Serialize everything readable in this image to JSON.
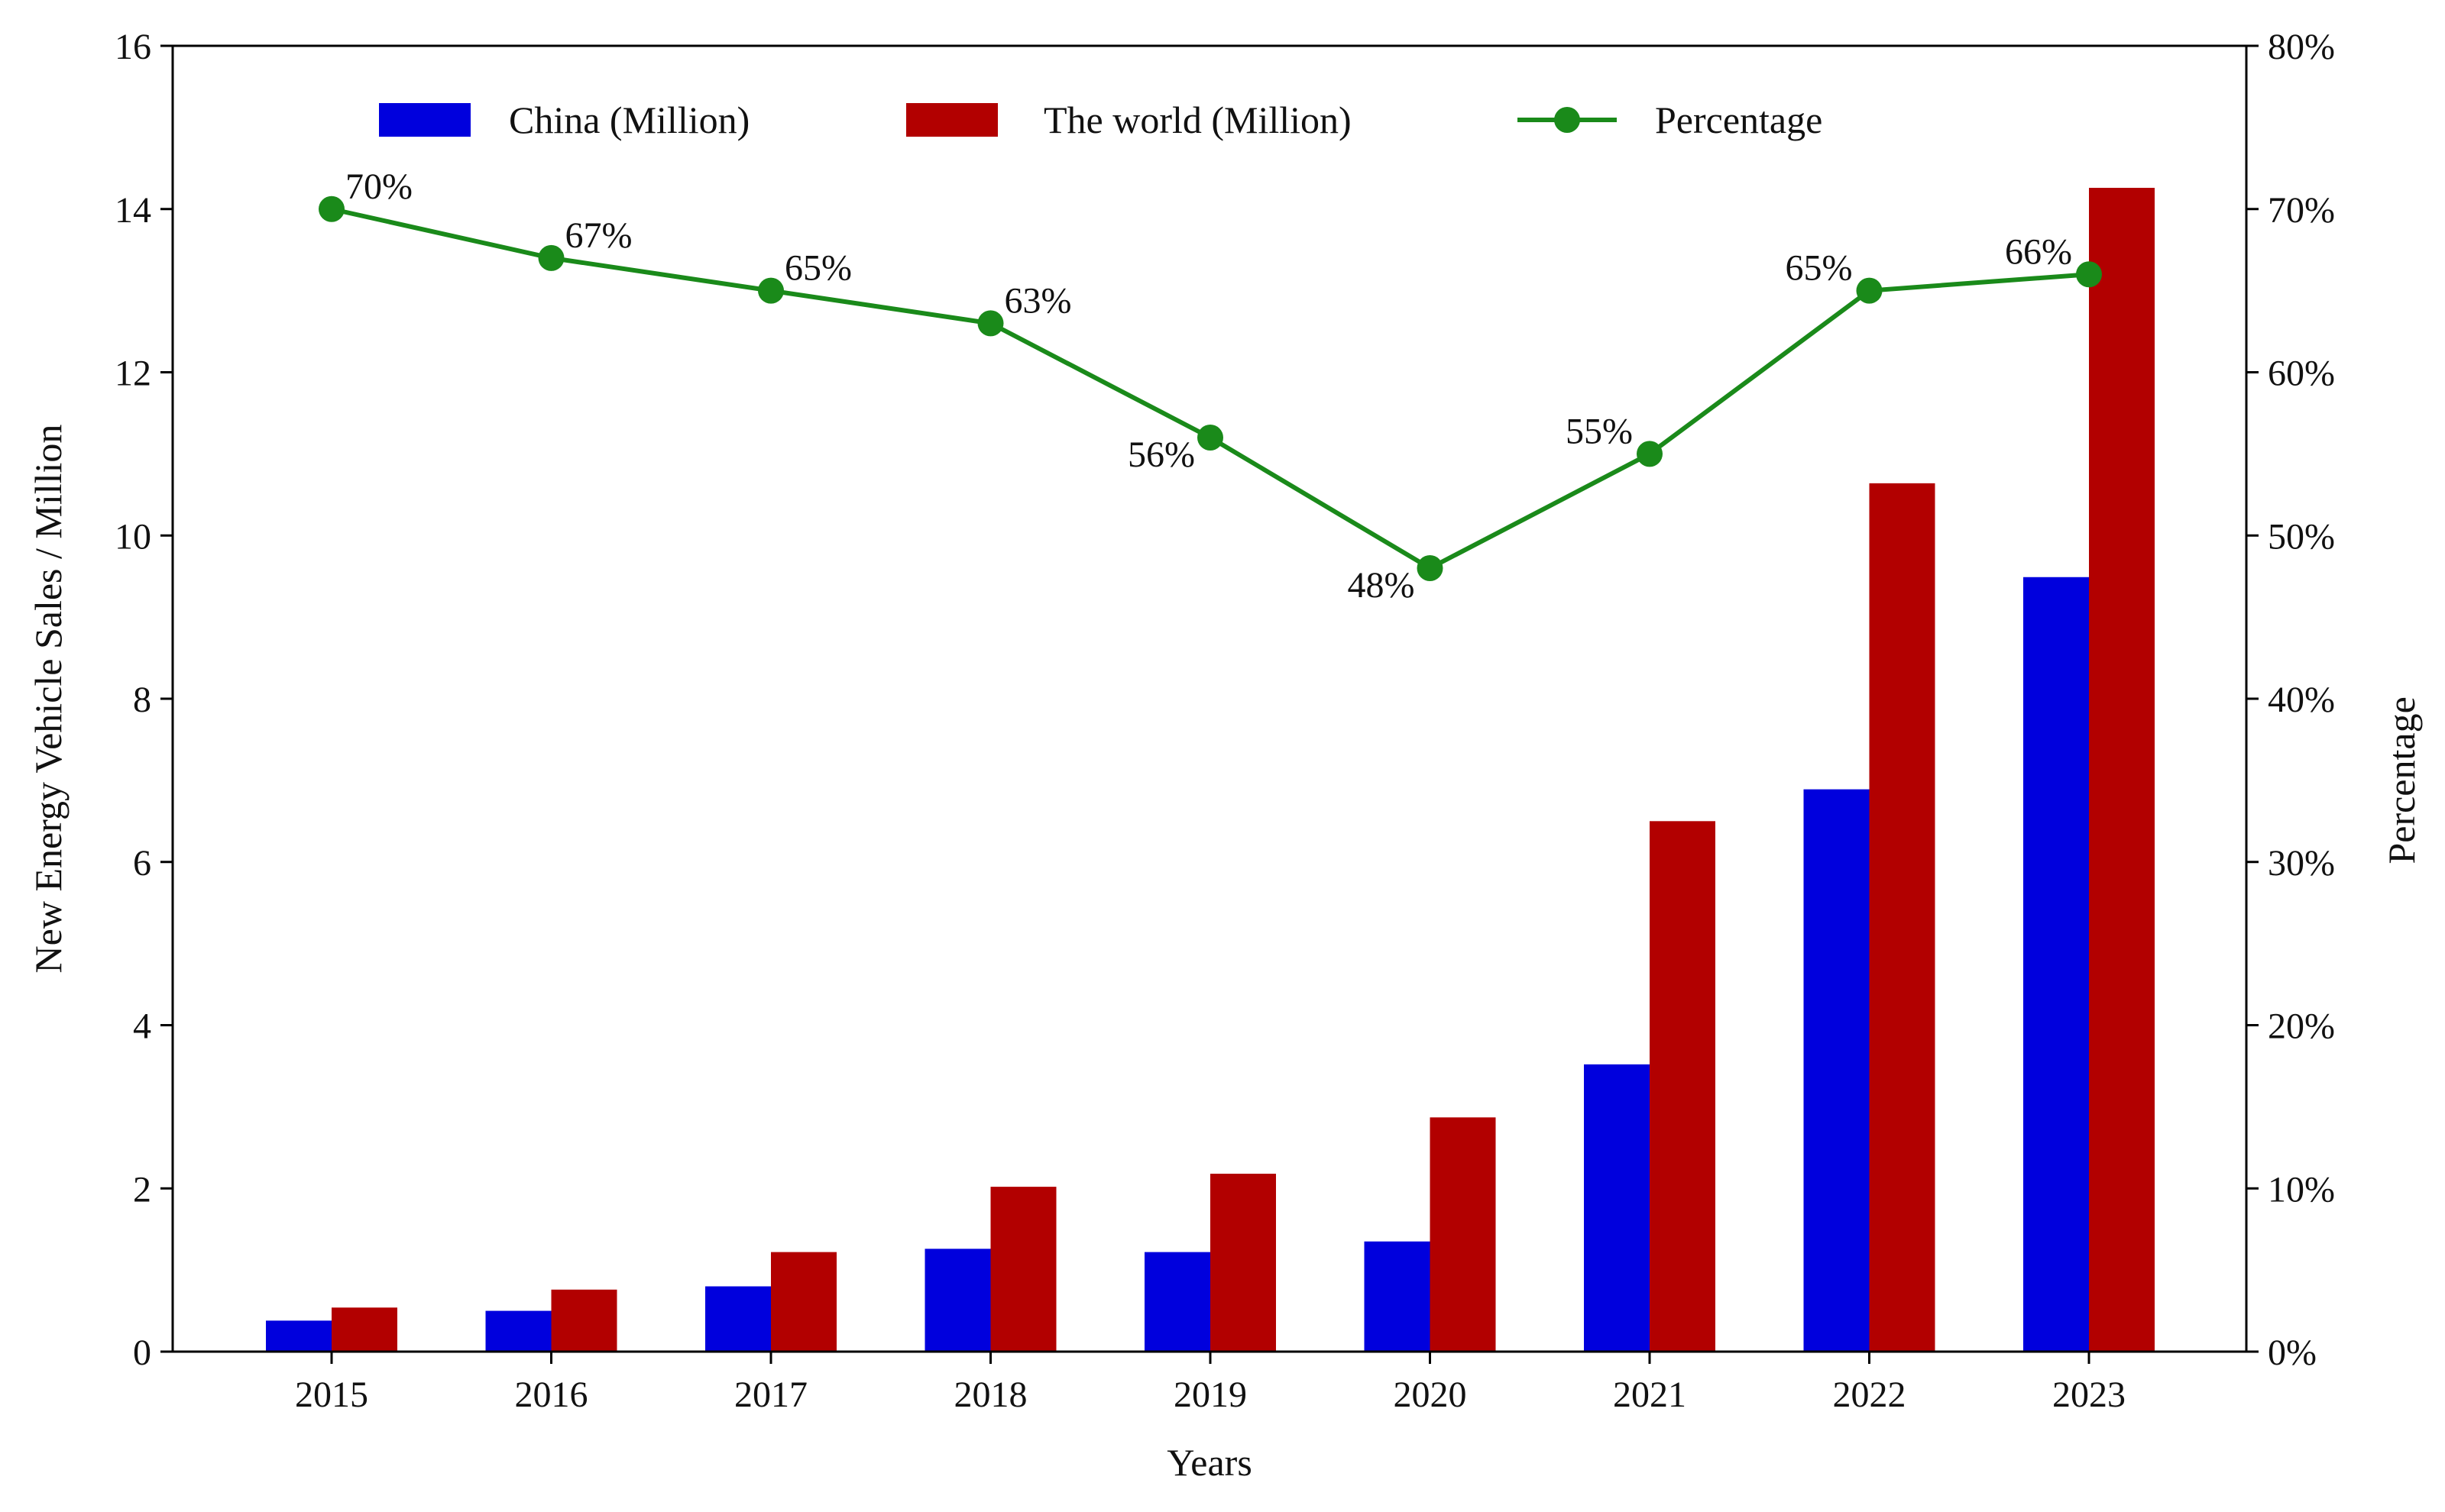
{
  "chart_data": {
    "type": "bar",
    "title": "",
    "categories": [
      "2015",
      "2016",
      "2017",
      "2018",
      "2019",
      "2020",
      "2021",
      "2022",
      "2023"
    ],
    "xlabel": "Years",
    "ylabel": "New Energy Vehicle Sales / Million",
    "y2label": "Percentage",
    "ylim": [
      0,
      16
    ],
    "y2lim": [
      0,
      80
    ],
    "yticks": [
      "0",
      "2",
      "4",
      "6",
      "8",
      "10",
      "12",
      "14",
      "16"
    ],
    "y2ticks": [
      "0%",
      "10%",
      "20%",
      "30%",
      "40%",
      "50%",
      "60%",
      "70%",
      "80%"
    ],
    "grid": false,
    "legend_position": "top",
    "series": [
      {
        "name": "China (Million)",
        "type": "bar",
        "axis": "left",
        "color": "#0000dd",
        "values": [
          0.38,
          0.5,
          0.8,
          1.26,
          1.22,
          1.35,
          3.52,
          6.89,
          9.49
        ]
      },
      {
        "name": "The world (Million)",
        "type": "bar",
        "axis": "left",
        "color": "#b20000",
        "values": [
          0.54,
          0.76,
          1.22,
          2.02,
          2.18,
          2.87,
          6.5,
          10.64,
          14.26
        ]
      },
      {
        "name": "Percentage",
        "type": "line",
        "axis": "right",
        "color": "#1a8a1a",
        "values": [
          70,
          67,
          65,
          63,
          56,
          48,
          55,
          65,
          66
        ],
        "labels": [
          "70%",
          "67%",
          "65%",
          "63%",
          "56%",
          "48%",
          "55%",
          "65%",
          "66%"
        ]
      }
    ]
  }
}
